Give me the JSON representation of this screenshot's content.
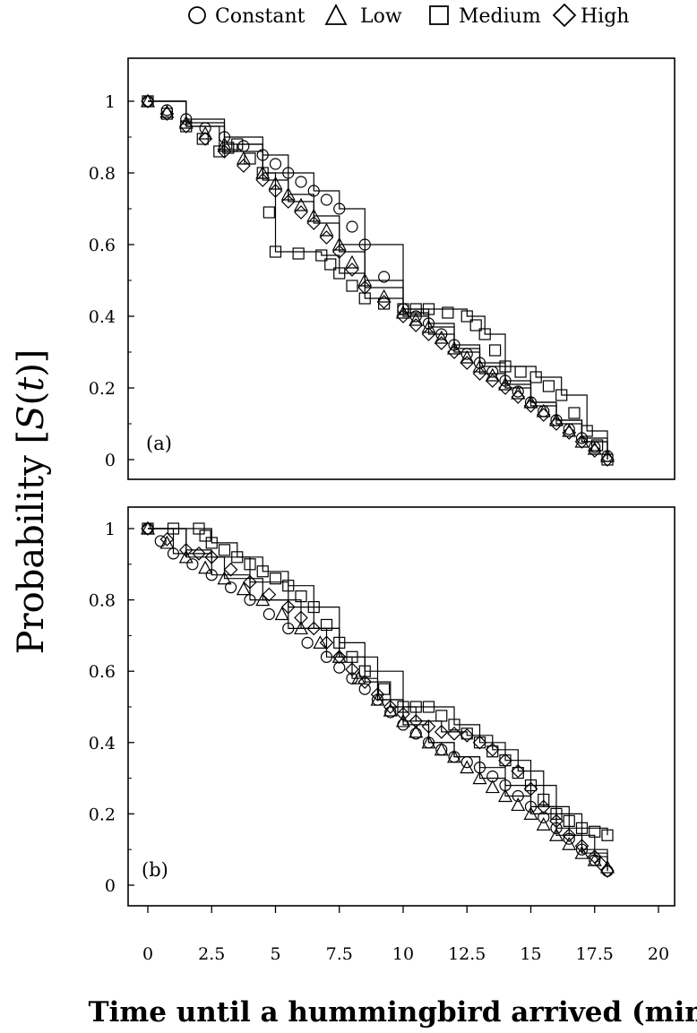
{
  "legend": [
    {
      "label": "Constant",
      "marker": "circle"
    },
    {
      "label": "Low",
      "marker": "triangle"
    },
    {
      "label": "Medium",
      "marker": "square"
    },
    {
      "label": "High",
      "marker": "diamond"
    }
  ],
  "axis_labels": {
    "y_prefix": "Probability [",
    "y_italic": "S",
    "y_mid": "(",
    "y_italic2": "t",
    "y_suffix": ")]",
    "x": "Time until a hummingbird arrived (min)"
  },
  "chart_data": [
    {
      "type": "line",
      "panel_label": "(a)",
      "xlim": [
        0,
        20
      ],
      "ylim": [
        0,
        1
      ],
      "x_ticks": [
        0,
        2.5,
        5,
        7.5,
        10,
        12.5,
        15,
        17.5,
        20
      ],
      "x_tick_labels": [
        "0",
        "2.5",
        "5",
        "7.5",
        "10",
        "12.5",
        "15",
        "17.5",
        "20"
      ],
      "x_ticks_shown": false,
      "y_ticks": [
        0,
        0.2,
        0.4,
        0.6,
        0.8,
        1
      ],
      "y_tick_labels": [
        "0",
        "0.2",
        "0.4",
        "0.6",
        "0.8",
        "1"
      ],
      "grid": false,
      "series": [
        {
          "name": "Constant",
          "marker": "circle",
          "x": [
            0,
            1.5,
            3,
            4.5,
            5.5,
            6.5,
            7.5,
            8.5,
            10,
            11,
            12,
            13,
            14,
            15,
            16,
            17,
            18
          ],
          "y": [
            1,
            0.95,
            0.9,
            0.85,
            0.8,
            0.75,
            0.7,
            0.6,
            0.42,
            0.38,
            0.32,
            0.27,
            0.22,
            0.16,
            0.11,
            0.06,
            0.01
          ]
        },
        {
          "name": "Low",
          "marker": "triangle",
          "x": [
            0,
            1.5,
            3,
            4.5,
            5.5,
            6.5,
            7.5,
            8.5,
            10,
            11,
            12,
            13,
            14,
            15,
            16,
            17,
            18
          ],
          "y": [
            1,
            0.94,
            0.88,
            0.8,
            0.74,
            0.68,
            0.6,
            0.5,
            0.41,
            0.37,
            0.31,
            0.26,
            0.21,
            0.16,
            0.11,
            0.05,
            0.01
          ]
        },
        {
          "name": "Medium",
          "marker": "square",
          "x": [
            0,
            1.5,
            2.8,
            3.5,
            4.5,
            5,
            6.8,
            7.5,
            8.5,
            10,
            11,
            12.5,
            13.2,
            14,
            15.2,
            16.2,
            17.2,
            18
          ],
          "y": [
            1,
            0.93,
            0.86,
            0.88,
            0.8,
            0.58,
            0.57,
            0.52,
            0.45,
            0.42,
            0.42,
            0.4,
            0.35,
            0.26,
            0.23,
            0.18,
            0.08,
            0
          ]
        },
        {
          "name": "High",
          "marker": "diamond",
          "x": [
            0,
            1.5,
            3,
            4.5,
            5.5,
            6.5,
            7.5,
            8.5,
            10,
            11,
            12,
            13,
            14,
            15,
            16,
            17,
            18
          ],
          "y": [
            1,
            0.93,
            0.86,
            0.78,
            0.72,
            0.66,
            0.58,
            0.48,
            0.4,
            0.35,
            0.3,
            0.24,
            0.2,
            0.15,
            0.1,
            0.05,
            0
          ]
        }
      ]
    },
    {
      "type": "line",
      "panel_label": "(b)",
      "xlim": [
        0,
        20
      ],
      "ylim": [
        0,
        1
      ],
      "x_ticks": [
        0,
        2.5,
        5,
        7.5,
        10,
        12.5,
        15,
        17.5,
        20
      ],
      "x_tick_labels": [
        "0",
        "2.5",
        "5",
        "7.5",
        "10",
        "12.5",
        "15",
        "17.5",
        "20"
      ],
      "x_ticks_shown": true,
      "y_ticks": [
        0,
        0.2,
        0.4,
        0.6,
        0.8,
        1
      ],
      "y_tick_labels": [
        "0",
        "0.2",
        "0.4",
        "0.6",
        "0.8",
        "1"
      ],
      "grid": false,
      "series": [
        {
          "name": "Constant",
          "marker": "circle",
          "x": [
            0,
            1,
            2.5,
            4,
            5.5,
            7,
            8,
            9,
            10,
            11,
            12,
            13,
            14,
            15,
            16,
            17,
            18
          ],
          "y": [
            1,
            0.93,
            0.87,
            0.8,
            0.72,
            0.64,
            0.58,
            0.52,
            0.45,
            0.4,
            0.36,
            0.33,
            0.28,
            0.22,
            0.16,
            0.1,
            0.04
          ]
        },
        {
          "name": "Low",
          "marker": "triangle",
          "x": [
            0,
            1.5,
            3,
            4.5,
            6,
            7.5,
            9,
            10,
            11,
            12,
            13,
            14,
            15,
            16,
            17,
            18
          ],
          "y": [
            1,
            0.92,
            0.86,
            0.8,
            0.72,
            0.64,
            0.52,
            0.46,
            0.4,
            0.36,
            0.3,
            0.25,
            0.2,
            0.14,
            0.09,
            0.05
          ]
        },
        {
          "name": "Medium",
          "marker": "square",
          "x": [
            0,
            2,
            2.5,
            3.5,
            4.5,
            5.5,
            6.5,
            7.5,
            8.5,
            10,
            11,
            12,
            13,
            14,
            15,
            16,
            17,
            18
          ],
          "y": [
            1,
            1,
            0.96,
            0.92,
            0.88,
            0.84,
            0.78,
            0.68,
            0.6,
            0.5,
            0.5,
            0.45,
            0.4,
            0.35,
            0.28,
            0.2,
            0.16,
            0.14
          ]
        },
        {
          "name": "High",
          "marker": "diamond",
          "x": [
            0,
            1.5,
            2.5,
            4,
            5.5,
            6.5,
            7.5,
            8.5,
            9.5,
            10.5,
            11.5,
            12.5,
            13.5,
            14.5,
            15.5,
            16.5,
            17.5,
            18
          ],
          "y": [
            1,
            0.94,
            0.92,
            0.85,
            0.78,
            0.72,
            0.64,
            0.57,
            0.5,
            0.46,
            0.43,
            0.42,
            0.38,
            0.32,
            0.22,
            0.14,
            0.08,
            0.04
          ]
        }
      ]
    }
  ]
}
